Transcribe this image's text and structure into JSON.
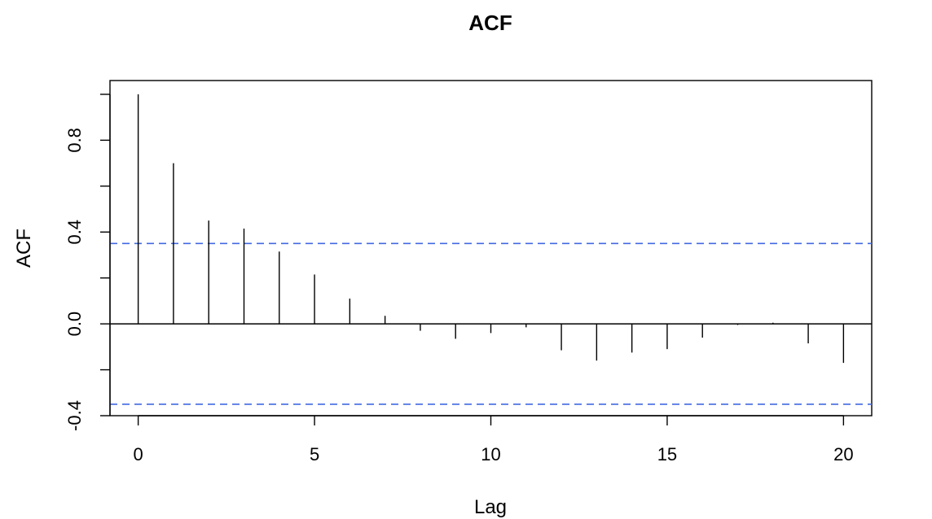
{
  "chart_data": {
    "type": "bar",
    "title": "ACF",
    "xlabel": "Lag",
    "ylabel": "ACF",
    "xlim": [
      -0.8,
      20.8
    ],
    "ylim": [
      -0.4,
      1.06
    ],
    "x_ticks": [
      0,
      5,
      10,
      15,
      20
    ],
    "x_tick_labels": [
      "0",
      "5",
      "10",
      "15",
      "20"
    ],
    "y_ticks": [
      -0.4,
      -0.2,
      0.0,
      0.2,
      0.4,
      0.6,
      0.8,
      1.0
    ],
    "y_tick_labels": [
      "-0.4",
      "",
      "0.0",
      "",
      "0.4",
      "",
      "0.8",
      ""
    ],
    "lags": [
      0,
      1,
      2,
      3,
      4,
      5,
      6,
      7,
      8,
      9,
      10,
      11,
      12,
      13,
      14,
      15,
      16,
      17,
      18,
      19,
      20
    ],
    "acf": [
      1.0,
      0.7,
      0.45,
      0.415,
      0.315,
      0.215,
      0.11,
      0.035,
      -0.03,
      -0.065,
      -0.04,
      -0.015,
      -0.115,
      -0.16,
      -0.125,
      -0.11,
      -0.06,
      -0.005,
      0.005,
      -0.085,
      -0.17
    ],
    "confidence_bounds": [
      0.35,
      -0.35
    ],
    "confidence_color": "#4169E1",
    "line_color": "#000000",
    "grid": false
  }
}
